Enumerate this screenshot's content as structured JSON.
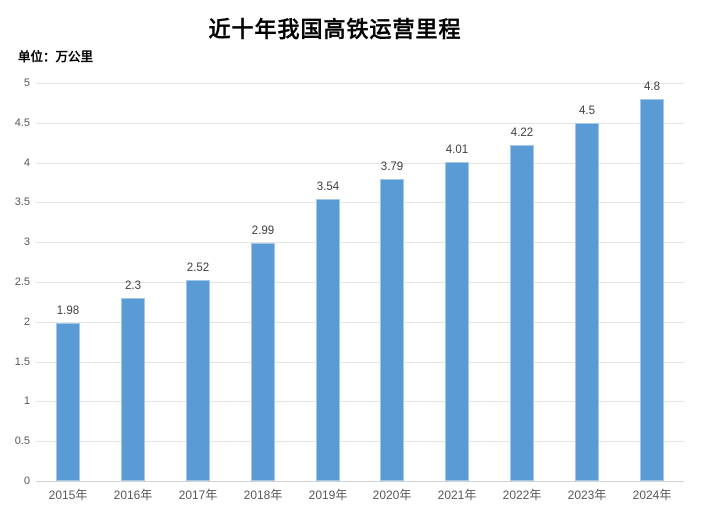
{
  "chart_data": {
    "type": "bar",
    "title": "近十年我国高铁运营里程",
    "unit_label": "单位：万公里",
    "categories": [
      "2015年",
      "2016年",
      "2017年",
      "2018年",
      "2019年",
      "2020年",
      "2021年",
      "2022年",
      "2023年",
      "2024年"
    ],
    "values": [
      1.98,
      2.3,
      2.52,
      2.99,
      3.54,
      3.79,
      4.01,
      4.22,
      4.5,
      4.8
    ],
    "value_labels": [
      "1.98",
      "2.3",
      "2.52",
      "2.99",
      "3.54",
      "3.79",
      "4.01",
      "4.22",
      "4.5",
      "4.8"
    ],
    "xlabel": "",
    "ylabel": "",
    "ylim": [
      0,
      5
    ],
    "y_tick_step": 0.5,
    "y_ticks": [
      "0",
      "0.5",
      "1",
      "1.5",
      "2",
      "2.5",
      "3",
      "3.5",
      "4",
      "4.5",
      "5"
    ],
    "grid": "horizontal",
    "legend_position": "none",
    "colors": {
      "bar_fill": "#5B9BD5",
      "bar_edge": "#A3C7E8",
      "gridline": "#E4E4E4",
      "axis_line": "#D2D2D2",
      "tick_label": "#595959",
      "data_label": "#404040",
      "title": "#000000",
      "background": "#FFFFFF"
    }
  }
}
